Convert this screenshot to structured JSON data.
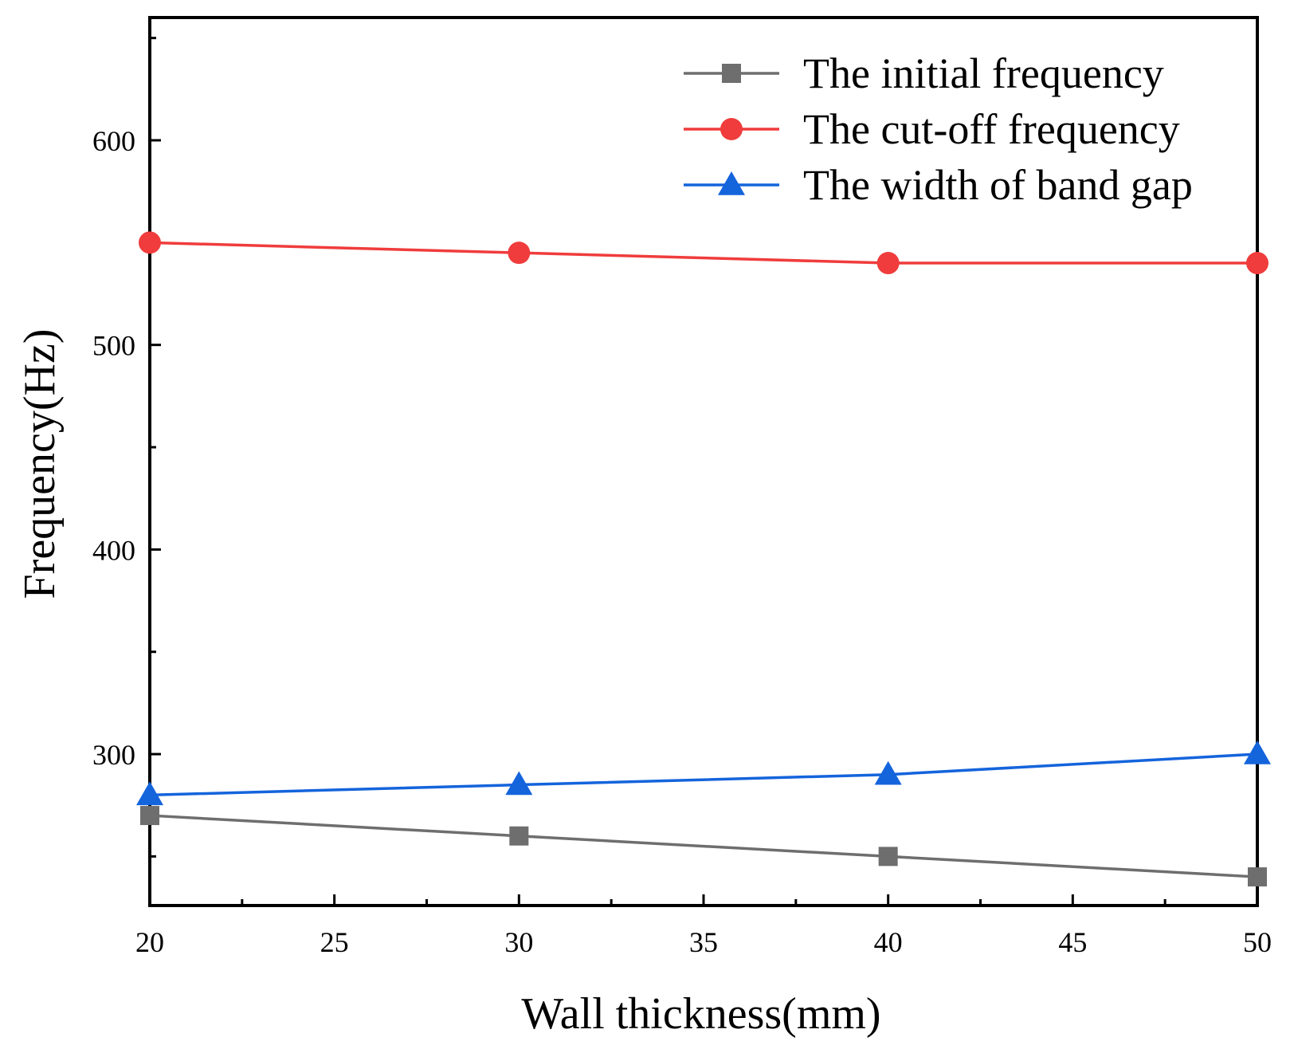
{
  "chart_data": {
    "type": "line",
    "title": "",
    "xlabel": "Wall thickness(mm)",
    "ylabel": "Frequency(Hz)",
    "xlim": [
      20,
      50
    ],
    "ylim": [
      226,
      660
    ],
    "x_ticks": [
      20,
      25,
      30,
      35,
      40,
      45,
      50
    ],
    "y_ticks": [
      300,
      400,
      500,
      600
    ],
    "x": [
      20,
      30,
      40,
      50
    ],
    "series": [
      {
        "name": "The initial frequency",
        "values": [
          270,
          260,
          250,
          240
        ],
        "color": "#6e6e6e",
        "marker": "square"
      },
      {
        "name": "The cut-off frequency",
        "values": [
          550,
          545,
          540,
          540
        ],
        "color": "#f03c3c",
        "marker": "circle"
      },
      {
        "name": "The width of band gap",
        "values": [
          280,
          285,
          290,
          300
        ],
        "color": "#1464dc",
        "marker": "triangle"
      }
    ],
    "legend_position": "top-right",
    "grid": false
  }
}
